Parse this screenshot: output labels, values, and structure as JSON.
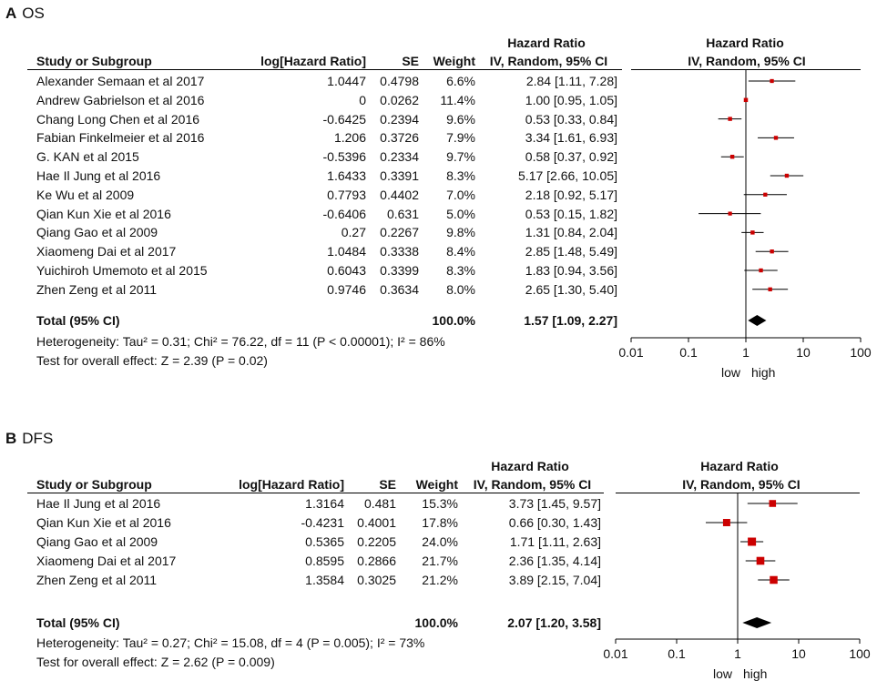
{
  "chart_data": [
    {
      "type": "forest",
      "panel_letter": "A",
      "panel_title": "OS",
      "header": {
        "study": "Study or Subgroup",
        "loghr": "log[Hazard Ratio]",
        "se": "SE",
        "weight": "Weight",
        "hr_top": "Hazard Ratio",
        "hr_sub": "IV, Random, 95% CI",
        "plot_top": "Hazard Ratio",
        "plot_sub": "IV, Random, 95% CI"
      },
      "studies": [
        {
          "name": "Alexander Semaan et al 2017",
          "loghr": "1.0447",
          "se": "0.4798",
          "weight": "6.6%",
          "ci_text": "2.84 [1.11, 7.28]",
          "hr": 2.84,
          "lo": 1.11,
          "hi": 7.28
        },
        {
          "name": "Andrew Gabrielson et al 2016",
          "loghr": "0",
          "se": "0.0262",
          "weight": "11.4%",
          "ci_text": "1.00 [0.95, 1.05]",
          "hr": 1.0,
          "lo": 0.95,
          "hi": 1.05
        },
        {
          "name": "Chang Long Chen et al 2016",
          "loghr": "-0.6425",
          "se": "0.2394",
          "weight": "9.6%",
          "ci_text": "0.53 [0.33, 0.84]",
          "hr": 0.53,
          "lo": 0.33,
          "hi": 0.84
        },
        {
          "name": "Fabian Finkelmeier et al 2016",
          "loghr": "1.206",
          "se": "0.3726",
          "weight": "7.9%",
          "ci_text": "3.34 [1.61, 6.93]",
          "hr": 3.34,
          "lo": 1.61,
          "hi": 6.93
        },
        {
          "name": "G. KAN et al 2015",
          "loghr": "-0.5396",
          "se": "0.2334",
          "weight": "9.7%",
          "ci_text": "0.58 [0.37, 0.92]",
          "hr": 0.58,
          "lo": 0.37,
          "hi": 0.92
        },
        {
          "name": "Hae Il Jung et al 2016",
          "loghr": "1.6433",
          "se": "0.3391",
          "weight": "8.3%",
          "ci_text": "5.17 [2.66, 10.05]",
          "hr": 5.17,
          "lo": 2.66,
          "hi": 10.05
        },
        {
          "name": "Ke Wu et al 2009",
          "loghr": "0.7793",
          "se": "0.4402",
          "weight": "7.0%",
          "ci_text": "2.18 [0.92, 5.17]",
          "hr": 2.18,
          "lo": 0.92,
          "hi": 5.17
        },
        {
          "name": "Qian Kun Xie et al 2016",
          "loghr": "-0.6406",
          "se": "0.631",
          "weight": "5.0%",
          "ci_text": "0.53 [0.15, 1.82]",
          "hr": 0.53,
          "lo": 0.15,
          "hi": 1.82
        },
        {
          "name": "Qiang Gao et al 2009",
          "loghr": "0.27",
          "se": "0.2267",
          "weight": "9.8%",
          "ci_text": "1.31 [0.84, 2.04]",
          "hr": 1.31,
          "lo": 0.84,
          "hi": 2.04
        },
        {
          "name": "Xiaomeng Dai et al 2017",
          "loghr": "1.0484",
          "se": "0.3338",
          "weight": "8.4%",
          "ci_text": "2.85 [1.48, 5.49]",
          "hr": 2.85,
          "lo": 1.48,
          "hi": 5.49
        },
        {
          "name": "Yuichiroh Umemoto et al 2015",
          "loghr": "0.6043",
          "se": "0.3399",
          "weight": "8.3%",
          "ci_text": "1.83 [0.94, 3.56]",
          "hr": 1.83,
          "lo": 0.94,
          "hi": 3.56
        },
        {
          "name": "Zhen Zeng et al 2011",
          "loghr": "0.9746",
          "se": "0.3634",
          "weight": "8.0%",
          "ci_text": "2.65 [1.30, 5.40]",
          "hr": 2.65,
          "lo": 1.3,
          "hi": 5.4
        }
      ],
      "total": {
        "label": "Total (95% CI)",
        "weight": "100.0%",
        "ci_text": "1.57 [1.09, 2.27]",
        "hr": 1.57,
        "lo": 1.09,
        "hi": 2.27
      },
      "heterogeneity": "Heterogeneity: Tau² = 0.31; Chi² = 76.22, df = 11 (P < 0.00001); I² = 86%",
      "overall_effect": "Test for overall effect: Z = 2.39 (P = 0.02)",
      "axis": {
        "scale": "log",
        "ticks": [
          0.01,
          0.1,
          1,
          10,
          100
        ],
        "tick_labels": [
          "0.01",
          "0.1",
          "1",
          "10",
          "100"
        ],
        "xlim": [
          0.01,
          100
        ],
        "favours_left": "low",
        "favours_right": "high"
      },
      "marker_color": "#cc0000"
    },
    {
      "type": "forest",
      "panel_letter": "B",
      "panel_title": "DFS",
      "header": {
        "study": "Study or Subgroup",
        "loghr": "log[Hazard Ratio]",
        "se": "SE",
        "weight": "Weight",
        "hr_top": "Hazard Ratio",
        "hr_sub": "IV, Random, 95% CI",
        "plot_top": "Hazard Ratio",
        "plot_sub": "IV, Random, 95% CI"
      },
      "studies": [
        {
          "name": "Hae Il Jung et al 2016",
          "loghr": "1.3164",
          "se": "0.481",
          "weight": "15.3%",
          "ci_text": "3.73 [1.45, 9.57]",
          "hr": 3.73,
          "lo": 1.45,
          "hi": 9.57
        },
        {
          "name": "Qian Kun Xie et al 2016",
          "loghr": "-0.4231",
          "se": "0.4001",
          "weight": "17.8%",
          "ci_text": "0.66 [0.30, 1.43]",
          "hr": 0.66,
          "lo": 0.3,
          "hi": 1.43
        },
        {
          "name": "Qiang Gao et al 2009",
          "loghr": "0.5365",
          "se": "0.2205",
          "weight": "24.0%",
          "ci_text": "1.71 [1.11, 2.63]",
          "hr": 1.71,
          "lo": 1.11,
          "hi": 2.63
        },
        {
          "name": "Xiaomeng Dai et al 2017",
          "loghr": "0.8595",
          "se": "0.2866",
          "weight": "21.7%",
          "ci_text": "2.36 [1.35, 4.14]",
          "hr": 2.36,
          "lo": 1.35,
          "hi": 4.14
        },
        {
          "name": "Zhen Zeng et al 2011",
          "loghr": "1.3584",
          "se": "0.3025",
          "weight": "21.2%",
          "ci_text": "3.89 [2.15, 7.04]",
          "hr": 3.89,
          "lo": 2.15,
          "hi": 7.04
        }
      ],
      "total": {
        "label": "Total (95% CI)",
        "weight": "100.0%",
        "ci_text": "2.07 [1.20, 3.58]",
        "hr": 2.07,
        "lo": 1.2,
        "hi": 3.58
      },
      "heterogeneity": "Heterogeneity: Tau² = 0.27; Chi² = 15.08, df = 4 (P = 0.005); I² = 73%",
      "overall_effect": "Test for overall effect: Z = 2.62 (P = 0.009)",
      "axis": {
        "scale": "log",
        "ticks": [
          0.01,
          0.1,
          1,
          10,
          100
        ],
        "tick_labels": [
          "0.01",
          "0.1",
          "1",
          "10",
          "100"
        ],
        "xlim": [
          0.01,
          100
        ],
        "favours_left": "low",
        "favours_right": "high"
      },
      "marker_color": "#cc0000"
    }
  ]
}
